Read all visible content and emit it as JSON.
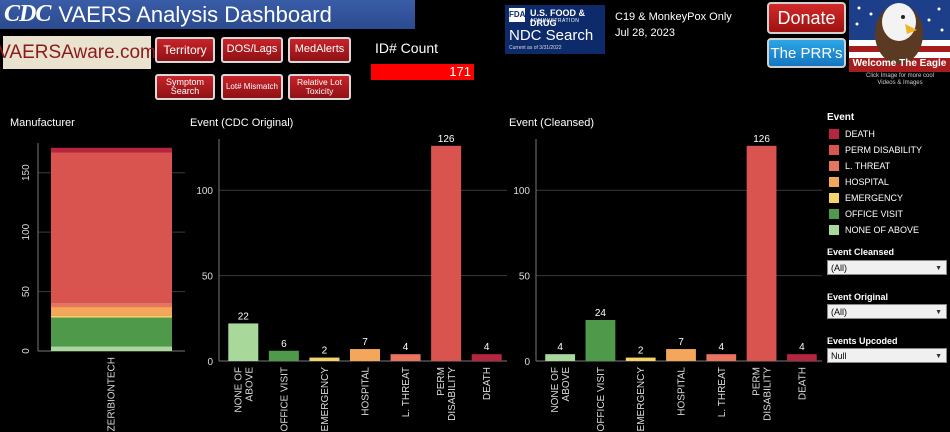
{
  "header": {
    "cdc_logo": "CDC",
    "title": "VAERS Analysis Dashboard",
    "vaers_logo": "VAERSAware.com",
    "nav": [
      "Territory",
      "DOS/Lags",
      "MedAlerts",
      "Symptom Search",
      "Lot# Mismatch",
      "Relative Lot Toxicity"
    ],
    "id_count_label": "ID# Count",
    "id_count_value": "171",
    "fda": {
      "mark": "FDA",
      "line1": "U.S. FOOD & DRUG",
      "line2": "ADMINISTRATION",
      "search": "NDC Search",
      "date": "Current as of 3/31/2022"
    },
    "scope": "C19 & MonkeyPox Only",
    "scope_date": "Jul 28, 2023",
    "donate": "Donate",
    "prr": "The PRR's",
    "eagle_text": "Welcome The Eagle",
    "eagle_caption1": "Click Image for more cool",
    "eagle_caption2": "Videos & Images"
  },
  "colors": {
    "DEATH": "#b5253d",
    "PERM DISABILITY": "#d9534f",
    "L. THREAT": "#e8735f",
    "HOSPITAL": "#f4a65a",
    "EMERGENCY": "#f3d36b",
    "OFFICE VISIT": "#4f9a4a",
    "NONE OF ABOVE": "#a8d99a"
  },
  "legend": {
    "title": "Event",
    "items": [
      "DEATH",
      "PERM DISABILITY",
      "L. THREAT",
      "HOSPITAL",
      "EMERGENCY",
      "OFFICE VISIT",
      "NONE OF ABOVE"
    ]
  },
  "filters": [
    {
      "label": "Event Cleansed",
      "value": "(All)"
    },
    {
      "label": "Event Original",
      "value": "(All)"
    },
    {
      "label": "Events Upcoded",
      "value": "Null"
    }
  ],
  "chart_data": [
    {
      "type": "bar",
      "stacked": true,
      "title": "Manufacturer",
      "categories": [
        "PFIZER\\BIONTECH"
      ],
      "series": [
        {
          "name": "NONE OF ABOVE",
          "values": [
            4
          ]
        },
        {
          "name": "OFFICE VISIT",
          "values": [
            24
          ]
        },
        {
          "name": "EMERGENCY",
          "values": [
            2
          ]
        },
        {
          "name": "HOSPITAL",
          "values": [
            7
          ]
        },
        {
          "name": "L. THREAT",
          "values": [
            4
          ]
        },
        {
          "name": "PERM DISABILITY",
          "values": [
            126
          ]
        },
        {
          "name": "DEATH",
          "values": [
            4
          ]
        }
      ],
      "yticks": [
        0,
        50,
        100,
        150
      ],
      "ylim": [
        0,
        175
      ]
    },
    {
      "type": "bar",
      "title": "Event (CDC Original)",
      "categories": [
        "NONE OF ABOVE",
        "OFFICE VISIT",
        "EMERGENCY",
        "HOSPITAL",
        "L. THREAT",
        "PERM DISABILITY",
        "DEATH"
      ],
      "values": [
        22,
        6,
        2,
        7,
        4,
        126,
        4
      ],
      "yticks": [
        0,
        50,
        100
      ],
      "ylim": [
        0,
        130
      ]
    },
    {
      "type": "bar",
      "title": "Event (Cleansed)",
      "categories": [
        "NONE OF ABOVE",
        "OFFICE VISIT",
        "EMERGENCY",
        "HOSPITAL",
        "L. THREAT",
        "PERM DISABILITY",
        "DEATH"
      ],
      "values": [
        4,
        24,
        2,
        7,
        4,
        126,
        4
      ],
      "yticks": [
        0,
        50,
        100
      ],
      "ylim": [
        0,
        130
      ]
    }
  ]
}
